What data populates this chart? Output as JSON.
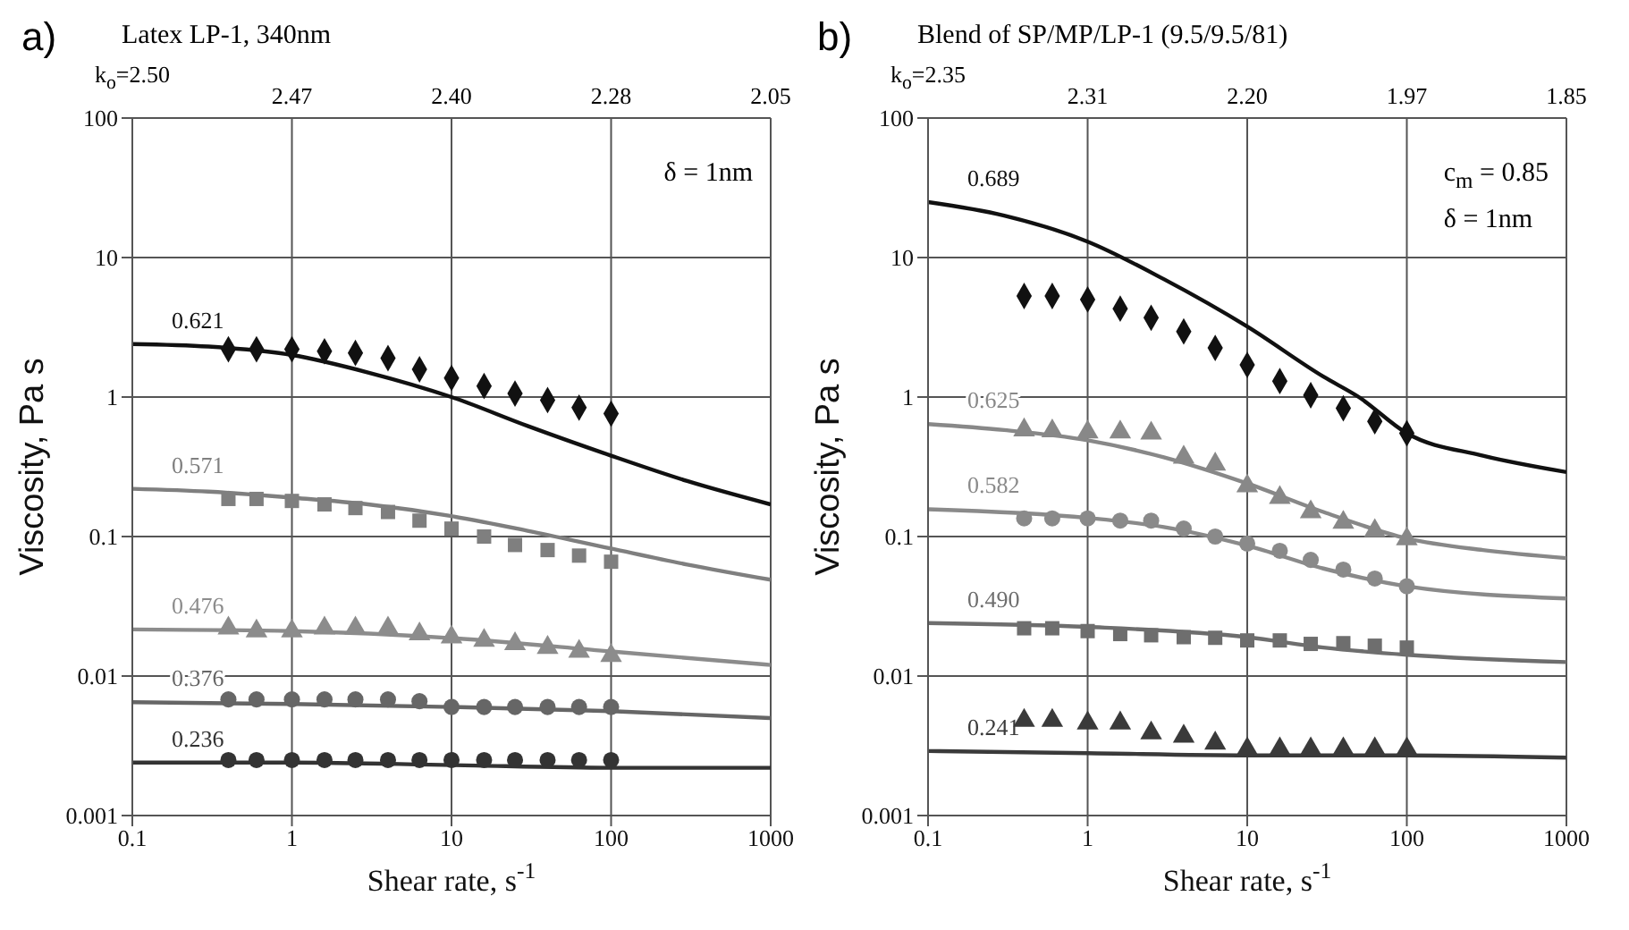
{
  "chart_data": [
    {
      "type": "line",
      "title": "Latex LP-1, 340nm",
      "xlabel": "Shear rate, s$^{-1}$",
      "ylabel": "Viscosity, Pa s",
      "log": "xy",
      "grid": true,
      "xlim": [
        0.1,
        1000
      ],
      "xticks": [
        0.1,
        1,
        10,
        100,
        1000
      ],
      "ylim": [
        0.001,
        100
      ],
      "yticks": [
        0.001,
        0.01,
        0.1,
        1,
        10,
        100
      ],
      "annotations": [
        "a)",
        "k$_{o}$=2.50",
        "2.47",
        "2.40",
        "2.28",
        "2.05",
        "δ = 1nm"
      ],
      "series": [
        {
          "name": "0.621",
          "color": "#111111",
          "x": [
            0.1,
            0.3,
            1,
            3,
            10,
            30,
            100,
            300,
            1000
          ],
          "values": [
            2.4,
            2.3,
            2.0,
            1.5,
            1.0,
            0.62,
            0.38,
            0.25,
            0.17
          ]
        },
        {
          "type": "scatter",
          "marker": "diamond",
          "color": "#111111",
          "x": [
            0.4,
            0.6,
            1,
            1.6,
            2.5,
            4,
            6.3,
            10,
            16,
            25,
            40,
            63,
            100
          ],
          "values": [
            2.2,
            2.2,
            2.2,
            2.13,
            2.07,
            1.9,
            1.58,
            1.37,
            1.2,
            1.06,
            0.95,
            0.84,
            0.76
          ]
        },
        {
          "name": "0.571",
          "color": "#7f7f7f",
          "x": [
            0.1,
            0.3,
            1,
            3,
            10,
            30,
            100,
            300,
            1000
          ],
          "values": [
            0.22,
            0.21,
            0.19,
            0.17,
            0.14,
            0.11,
            0.082,
            0.063,
            0.049
          ]
        },
        {
          "type": "scatter",
          "marker": "square",
          "color": "#7f7f7f",
          "x": [
            0.4,
            0.6,
            1,
            1.6,
            2.5,
            4,
            6.3,
            10,
            16,
            25,
            40,
            63,
            100
          ],
          "values": [
            0.186,
            0.186,
            0.18,
            0.17,
            0.16,
            0.15,
            0.13,
            0.114,
            0.1,
            0.087,
            0.08,
            0.073,
            0.066
          ]
        },
        {
          "name": "0.476",
          "color": "#8c8c8c",
          "x": [
            0.1,
            1,
            10,
            100,
            1000
          ],
          "values": [
            0.0216,
            0.021,
            0.0187,
            0.015,
            0.012
          ]
        },
        {
          "type": "scatter",
          "marker": "triangle",
          "color": "#8c8c8c",
          "x": [
            0.4,
            0.6,
            1,
            1.6,
            2.5,
            4,
            6.3,
            10,
            16,
            25,
            40,
            63,
            100
          ],
          "values": [
            0.022,
            0.021,
            0.021,
            0.022,
            0.022,
            0.022,
            0.02,
            0.019,
            0.018,
            0.017,
            0.016,
            0.015,
            0.014
          ]
        },
        {
          "name": "0.376",
          "color": "#666666",
          "x": [
            0.1,
            1,
            10,
            100,
            1000
          ],
          "values": [
            0.0065,
            0.0063,
            0.006,
            0.0056,
            0.005
          ]
        },
        {
          "type": "scatter",
          "marker": "circle",
          "color": "#666666",
          "x": [
            0.4,
            0.6,
            1,
            1.6,
            2.5,
            4,
            6.3,
            10,
            16,
            25,
            40,
            63,
            100
          ],
          "values": [
            0.0068,
            0.0068,
            0.0068,
            0.0068,
            0.0068,
            0.0068,
            0.0066,
            0.006,
            0.006,
            0.006,
            0.006,
            0.006,
            0.006
          ]
        },
        {
          "name": "0.236",
          "color": "#333333",
          "x": [
            0.1,
            1,
            10,
            100,
            1000
          ],
          "values": [
            0.0024,
            0.0024,
            0.0023,
            0.0022,
            0.0022
          ]
        },
        {
          "type": "scatter",
          "marker": "circle",
          "color": "#333333",
          "x": [
            0.4,
            0.6,
            1,
            1.6,
            2.5,
            4,
            6.3,
            10,
            16,
            25,
            40,
            63,
            100
          ],
          "values": [
            0.0025,
            0.0025,
            0.0025,
            0.0025,
            0.0025,
            0.0025,
            0.0025,
            0.0025,
            0.0025,
            0.0025,
            0.0025,
            0.0025,
            0.0025
          ]
        }
      ]
    },
    {
      "type": "line",
      "title": "Blend of SP/MP/LP-1 (9.5/9.5/81)",
      "xlabel": "Shear rate, s$^{-1}$",
      "ylabel": "Viscosity, Pa s",
      "log": "xy",
      "grid": true,
      "xlim": [
        0.1,
        1000
      ],
      "xticks": [
        0.1,
        1,
        10,
        100,
        1000
      ],
      "ylim": [
        0.001,
        100
      ],
      "yticks": [
        0.001,
        0.01,
        0.1,
        1,
        10,
        100
      ],
      "annotations": [
        "b)",
        "k$_{o}$=2.35",
        "2.31",
        "2.20",
        "1.97",
        "1.85",
        "c$_{m}$ = 0.85",
        "δ = 1nm"
      ],
      "series": [
        {
          "name": "0.689",
          "color": "#111111",
          "x": [
            0.1,
            0.3,
            1,
            3,
            10,
            30,
            50,
            100,
            300,
            1000
          ],
          "values": [
            25,
            20,
            13,
            7,
            3.2,
            1.4,
            1.0,
            0.55,
            0.38,
            0.29
          ]
        },
        {
          "type": "scatter",
          "marker": "diamond",
          "color": "#111111",
          "x": [
            0.4,
            0.6,
            1,
            1.6,
            2.5,
            4,
            6.3,
            10,
            16,
            25,
            40,
            63,
            100
          ],
          "values": [
            5.3,
            5.3,
            5.0,
            4.3,
            3.7,
            2.95,
            2.25,
            1.7,
            1.3,
            1.03,
            0.83,
            0.67,
            0.55
          ]
        },
        {
          "name": "0.625",
          "color": "#888888",
          "x": [
            0.1,
            0.3,
            1,
            3,
            10,
            30,
            100,
            300,
            1000
          ],
          "values": [
            0.64,
            0.58,
            0.49,
            0.37,
            0.24,
            0.15,
            0.097,
            0.08,
            0.07
          ]
        },
        {
          "type": "scatter",
          "marker": "triangle",
          "color": "#888888",
          "x": [
            0.4,
            0.6,
            1,
            1.6,
            2.5,
            4,
            6.3,
            10,
            16,
            25,
            40,
            63,
            100
          ],
          "values": [
            0.58,
            0.57,
            0.56,
            0.56,
            0.55,
            0.37,
            0.33,
            0.23,
            0.19,
            0.15,
            0.126,
            0.11,
            0.096
          ]
        },
        {
          "name": "0.582",
          "color": "#8a8a8a",
          "x": [
            0.1,
            1,
            3,
            10,
            30,
            100,
            1000
          ],
          "values": [
            0.157,
            0.136,
            0.117,
            0.086,
            0.059,
            0.044,
            0.036
          ]
        },
        {
          "type": "scatter",
          "marker": "circle",
          "color": "#8a8a8a",
          "x": [
            0.4,
            0.6,
            1,
            1.6,
            2.5,
            4,
            6.3,
            10,
            16,
            25,
            40,
            63,
            100
          ],
          "values": [
            0.135,
            0.135,
            0.135,
            0.13,
            0.13,
            0.114,
            0.1,
            0.089,
            0.079,
            0.068,
            0.058,
            0.05,
            0.044
          ]
        },
        {
          "name": "0.490",
          "color": "#6e6e6e",
          "x": [
            0.1,
            1,
            10,
            30,
            100,
            1000
          ],
          "values": [
            0.024,
            0.0225,
            0.019,
            0.016,
            0.0142,
            0.0126
          ]
        },
        {
          "type": "scatter",
          "marker": "square",
          "color": "#6e6e6e",
          "x": [
            0.4,
            0.6,
            1,
            1.6,
            2.5,
            4,
            6.3,
            10,
            16,
            25,
            40,
            63,
            100
          ],
          "values": [
            0.022,
            0.022,
            0.021,
            0.02,
            0.0196,
            0.019,
            0.0188,
            0.018,
            0.018,
            0.017,
            0.0172,
            0.0165,
            0.016
          ]
        },
        {
          "name": "0.241",
          "color": "#3a3a3a",
          "x": [
            0.1,
            1,
            10,
            100,
            1000
          ],
          "values": [
            0.0029,
            0.0028,
            0.0027,
            0.0027,
            0.0026
          ]
        },
        {
          "type": "scatter",
          "marker": "triangle",
          "color": "#3a3a3a",
          "x": [
            0.4,
            0.6,
            1,
            1.6,
            2.5,
            4,
            6.3,
            10,
            16,
            25,
            40,
            63,
            100
          ],
          "values": [
            0.0048,
            0.0048,
            0.0046,
            0.0046,
            0.0039,
            0.0037,
            0.0033,
            0.003,
            0.003,
            0.003,
            0.003,
            0.003,
            0.003
          ]
        }
      ]
    }
  ]
}
